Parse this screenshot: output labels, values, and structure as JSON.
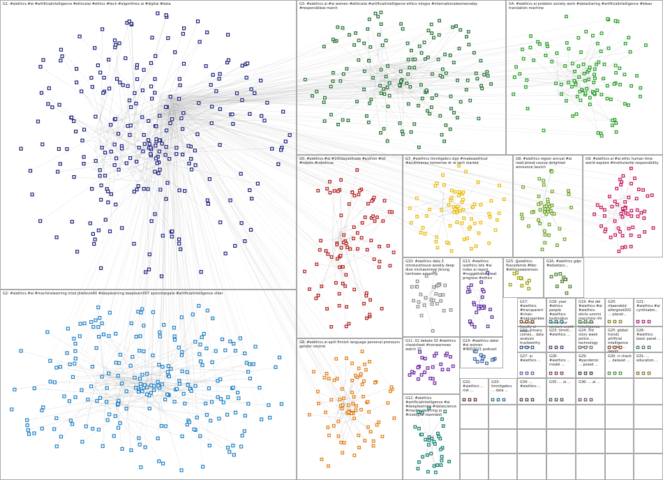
{
  "groups": [
    {
      "id": "G1",
      "label": "G1: #aiethics #ai #artificialintelligence #ethicalai #ethics #tech #algorithms ai #digital #data",
      "color": "#1a1f7a"
    },
    {
      "id": "G2",
      "label": "G2: #aiethics #ai #machinelearning mlsd jblefevre60 #deeplearning deeplearn007 sprocmargate #artificialintelligence shier",
      "color": "#1f7fc4"
    },
    {
      "id": "G3",
      "label": "G3: #aiethics ai #ai women #ethicalai #artificialintelligence ethics mlsgss #internationalwomensday #responsibleai march",
      "color": "#1f6b2f"
    },
    {
      "id": "G4",
      "label": "G4: #aiethics ai problem society work #datasharing #artificialintelligence #ideas translation machine",
      "color": "#1f9a1f"
    },
    {
      "id": "G5",
      "label": "G5: #aiethics #ai #100daysofcode #python #iot #robots #roboticsa",
      "color": "#b01818"
    },
    {
      "id": "G6",
      "label": "G6: #aiethics ai april finnish language personal pronouns gender neutral",
      "color": "#e07a10"
    },
    {
      "id": "G7",
      "label": "G7: #aiethics timnitgebru sign #makeaiethical #acutimanov tomorrow dr re tech started",
      "color": "#e8b800"
    },
    {
      "id": "G8",
      "label": "G8: #aiethics region annual #ai read proud course delighted announce launch",
      "color": "#6aa020"
    },
    {
      "id": "G9",
      "label": "G9: #aiethics ai #ai ethic human time world explore #instituteofai responsibility",
      "color": "#c4105a"
    },
    {
      "id": "G10",
      "label": "G10: #aiethics data 3 stroducehouse weekly deep dive michaemmer jbrung tamhaws amazing",
      "color": "#8a8a8a"
    },
    {
      "id": "G11",
      "label": "G11: 02 debate 02 #aiethics cheatsheet #nonwarnews watch 15",
      "color": "#6a1fa0"
    },
    {
      "id": "G12",
      "label": "G12: #aiethics #artificialintelligence #ai #deeplearning #datascience #machinelearning ai #ciodigital teamlaidl",
      "color": "#0b7a6a"
    },
    {
      "id": "G13",
      "label": "G13: #aiethics iaiethics lets #ai index ai report #nuggettalks great progress #ethics",
      "color": "#5a2a9a"
    },
    {
      "id": "G14",
      "label": "G14: #aiethics datei #ai women #IWD2021 podcast",
      "color": "#3a5fa0"
    },
    {
      "id": "G15",
      "label": "G15: @aiethics fkacademie #bbc #ethicsawareness",
      "color": "#999900"
    },
    {
      "id": "G16",
      "label": "G16: #aiethics gdpr #edxetacc...",
      "color": "#4a7a2a"
    }
  ],
  "small_groups": [
    {
      "id": "G17",
      "label": "G17: #aiethics #transparent #chain #nagusanbee #ethical faculty ai crisis",
      "color": "#7a4a1a"
    },
    {
      "id": "G18",
      "label": "G18: year #ethics people #aiethics toutinobus des ai jour sensors avoid",
      "color": "#1a6a7a"
    },
    {
      "id": "G19",
      "label": "G19: #ai del #aiethics #ai #aiethics eticle uomini macchine nhi controllo lintelligenza",
      "color": "#3a7a3a"
    },
    {
      "id": "G20",
      "label": "G20: ribaendold aiforgood2021 ... planet...",
      "color": "#7a7a1a"
    },
    {
      "id": "G21",
      "label": "G21: #aiethics #ai cynthiabm...",
      "color": "#9a1a6a"
    },
    {
      "id": "G22",
      "label": "G22: privacy comes... data analysis trustworthy sense",
      "color": "#2a4a8a"
    },
    {
      "id": "G23",
      "label": "G23: timnit... #aiethics ...",
      "color": "#4a2a6a"
    },
    {
      "id": "G24",
      "label": "G24: 3rd story week police ... technology mean",
      "color": "#6a6a6a"
    },
    {
      "id": "G25",
      "label": "G25: global trends artificial intelligence ai index ... report",
      "color": "#8a3a1a"
    },
    {
      "id": "G26",
      "label": "G26: #aiethics basic panel ...",
      "color": "#3a6a6a"
    },
    {
      "id": "G27",
      "label": "G27: ai #aiethics ...",
      "color": "#5a5a9a"
    },
    {
      "id": "G28",
      "label": "G28: #aiethics ... model ...",
      "color": "#7a3a5a"
    },
    {
      "id": "G29",
      "label": "G29: #pandemic ... posed ...",
      "color": "#3a3a3a"
    },
    {
      "id": "G30",
      "label": "G30: ci check ... dataset ...",
      "color": "#4a8a4a"
    },
    {
      "id": "G31",
      "label": "G31: ... education ...",
      "color": "#8a6a2a"
    },
    {
      "id": "G32",
      "label": "G32: #aiethics ... risk ...",
      "color": "#6a2a2a"
    },
    {
      "id": "G33",
      "label": "G33: timnitgebru ... data ...",
      "color": "#2a6a8a"
    },
    {
      "id": "G34",
      "label": "G34: ... #aiethics ...",
      "color": "#5a3a2a"
    },
    {
      "id": "G35",
      "label": "G35: ... ai ...",
      "color": "#3a5a3a"
    },
    {
      "id": "G36",
      "label": "G36: ... ai ...",
      "color": "#6a4a6a"
    }
  ]
}
